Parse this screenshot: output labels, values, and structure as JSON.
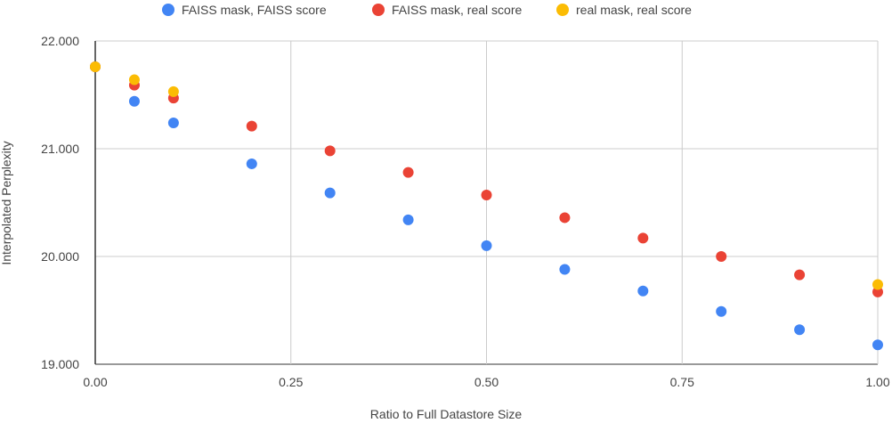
{
  "chart_data": {
    "type": "scatter",
    "title": "",
    "xlabel": "Ratio to Full Datastore Size",
    "ylabel": "Interpolated Perplexity",
    "xlim": [
      0,
      1
    ],
    "ylim": [
      19,
      22
    ],
    "xticks": [
      "0.00",
      "0.25",
      "0.50",
      "0.75",
      "1.00"
    ],
    "xtick_values": [
      0,
      0.25,
      0.5,
      0.75,
      1.0
    ],
    "yticks": [
      "19.000",
      "20.000",
      "21.000",
      "22.000"
    ],
    "ytick_values": [
      19,
      20,
      21,
      22
    ],
    "grid": true,
    "legend_position": "top-center",
    "series": [
      {
        "name": "FAISS mask, FAISS score",
        "color": "#4285f4",
        "x": [
          0,
          0.05,
          0.1,
          0.2,
          0.3,
          0.4,
          0.5,
          0.6,
          0.7,
          0.8,
          0.9,
          1.0
        ],
        "y": [
          21.76,
          21.44,
          21.24,
          20.86,
          20.59,
          20.34,
          20.1,
          19.88,
          19.68,
          19.49,
          19.32,
          19.18
        ]
      },
      {
        "name": "FAISS mask, real score",
        "color": "#ea4335",
        "x": [
          0,
          0.05,
          0.1,
          0.2,
          0.3,
          0.4,
          0.5,
          0.6,
          0.7,
          0.8,
          0.9,
          1.0
        ],
        "y": [
          21.76,
          21.59,
          21.47,
          21.21,
          20.98,
          20.78,
          20.57,
          20.36,
          20.17,
          20.0,
          19.83,
          19.67
        ]
      },
      {
        "name": "real mask, real score",
        "color": "#fbbc04",
        "x": [
          0,
          0.05,
          0.1,
          1.0
        ],
        "y": [
          21.76,
          21.64,
          21.53,
          19.74
        ]
      }
    ]
  }
}
